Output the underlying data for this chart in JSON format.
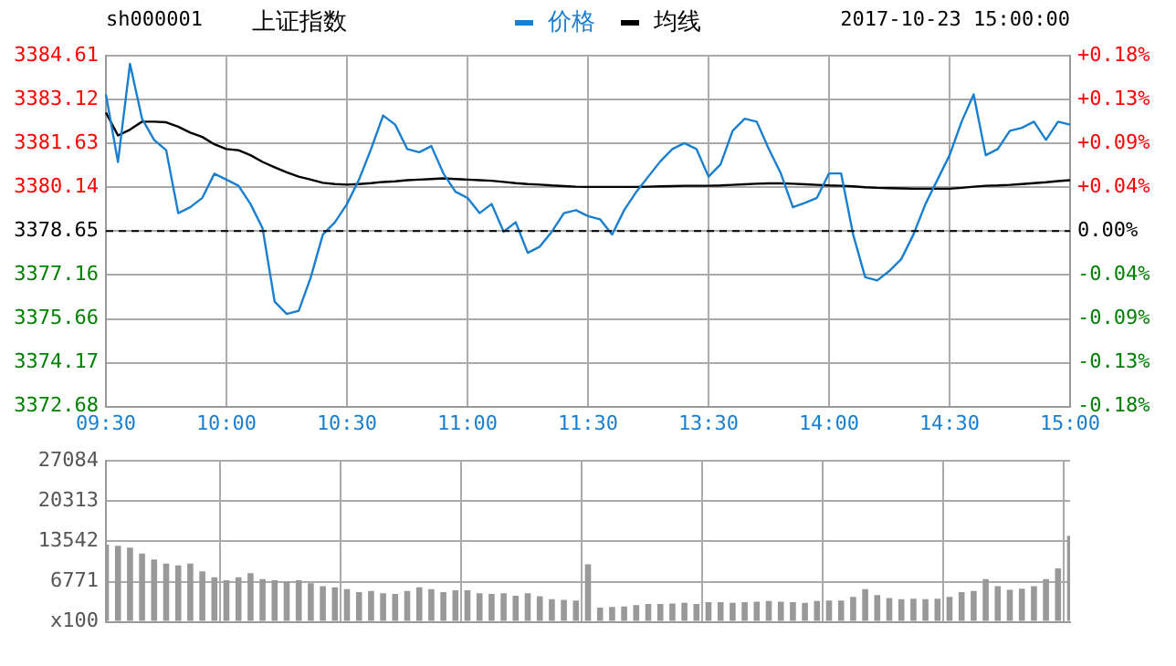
{
  "chart_data": [
    {
      "type": "line",
      "title": "上证指数",
      "subtitle": "sh000001",
      "annotations": [
        "2017-10-23 15:00:00"
      ],
      "categories": [
        "09:30",
        null,
        null,
        null,
        null,
        null,
        null,
        null,
        null,
        null,
        "10:00",
        null,
        null,
        null,
        null,
        null,
        null,
        null,
        null,
        null,
        "10:30",
        null,
        null,
        null,
        null,
        null,
        null,
        null,
        null,
        null,
        "11:00",
        null,
        null,
        null,
        null,
        null,
        null,
        null,
        null,
        null,
        "11:30",
        null,
        null,
        null,
        null,
        null,
        null,
        null,
        null,
        null,
        "13:30",
        null,
        null,
        null,
        null,
        null,
        null,
        null,
        null,
        null,
        "14:00",
        null,
        null,
        null,
        null,
        null,
        null,
        null,
        null,
        null,
        "14:30",
        null,
        null,
        null,
        null,
        null,
        null,
        null,
        null,
        null,
        "15:00"
      ],
      "series": [
        {
          "name": "价格",
          "color": "#1a7fcf",
          "values": [
            3383.3,
            3381.0,
            3384.34,
            3382.47,
            3381.75,
            3381.4,
            3379.26,
            3379.46,
            3379.78,
            3380.6,
            3380.4,
            3380.19,
            3379.57,
            3378.74,
            3376.25,
            3375.83,
            3375.94,
            3377.08,
            3378.53,
            3378.95,
            3379.57,
            3380.4,
            3381.44,
            3382.58,
            3382.27,
            3381.44,
            3381.33,
            3381.54,
            3380.61,
            3379.99,
            3379.78,
            3379.26,
            3379.57,
            3378.63,
            3378.95,
            3377.91,
            3378.12,
            3378.63,
            3379.26,
            3379.36,
            3379.16,
            3379.05,
            3378.53,
            3379.36,
            3379.98,
            3380.5,
            3381.02,
            3381.44,
            3381.64,
            3381.44,
            3380.5,
            3380.92,
            3382.06,
            3382.47,
            3382.37,
            3381.44,
            3380.61,
            3379.46,
            3379.61,
            3379.78,
            3380.61,
            3380.61,
            3378.53,
            3377.08,
            3376.97,
            3377.29,
            3377.7,
            3378.53,
            3379.57,
            3380.4,
            3381.23,
            3382.37,
            3383.3,
            3381.23,
            3381.44,
            3382.06,
            3382.16,
            3382.37,
            3381.75,
            3382.37,
            3382.27
          ]
        },
        {
          "name": "均线",
          "color": "#000000",
          "values": [
            3382.68,
            3381.9,
            3382.1,
            3382.37,
            3382.37,
            3382.35,
            3382.2,
            3382.0,
            3381.85,
            3381.6,
            3381.44,
            3381.4,
            3381.23,
            3381.0,
            3380.82,
            3380.65,
            3380.5,
            3380.4,
            3380.29,
            3380.25,
            3380.23,
            3380.25,
            3380.28,
            3380.32,
            3380.34,
            3380.38,
            3380.4,
            3380.42,
            3380.44,
            3380.42,
            3380.4,
            3380.38,
            3380.36,
            3380.32,
            3380.28,
            3380.25,
            3380.23,
            3380.2,
            3380.18,
            3380.16,
            3380.15,
            3380.15,
            3380.15,
            3380.15,
            3380.15,
            3380.16,
            3380.17,
            3380.18,
            3380.19,
            3380.19,
            3380.19,
            3380.2,
            3380.22,
            3380.24,
            3380.26,
            3380.27,
            3380.27,
            3380.26,
            3380.24,
            3380.22,
            3380.2,
            3380.19,
            3380.17,
            3380.14,
            3380.12,
            3380.11,
            3380.1,
            3380.09,
            3380.09,
            3380.09,
            3380.09,
            3380.12,
            3380.16,
            3380.19,
            3380.2,
            3380.22,
            3380.25,
            3380.28,
            3380.31,
            3380.35,
            3380.38
          ]
        }
      ],
      "ylim": [
        3372.68,
        3384.61
      ],
      "yticks": [
        3372.68,
        3374.17,
        3375.66,
        3377.16,
        3378.65,
        3380.14,
        3381.63,
        3383.12,
        3384.61
      ],
      "y2lim": [
        -0.1766,
        0.1766
      ],
      "y2ticks": [
        {
          "value": -0.1766,
          "label": "-0.18%"
        },
        {
          "value": -0.1324,
          "label": "-0.13%"
        },
        {
          "value": -0.0883,
          "label": "-0.09%"
        },
        {
          "value": -0.0441,
          "label": "-0.04%"
        },
        {
          "value": 0,
          "label": "0.00%"
        },
        {
          "value": 0.0441,
          "label": "+0.04%"
        },
        {
          "value": 0.0883,
          "label": "+0.09%"
        },
        {
          "value": 0.1324,
          "label": "+0.13%"
        },
        {
          "value": 0.1766,
          "label": "+0.18%"
        }
      ],
      "ref_lines": [
        {
          "axis": "y",
          "value": 3378.65,
          "color": "#000000",
          "line_style": "dashed"
        }
      ],
      "grid": true,
      "legend": "top",
      "marker": "none",
      "line_style": "solid"
    },
    {
      "type": "bar",
      "categories": [
        null,
        null,
        null,
        null,
        null,
        null,
        null,
        null,
        null,
        null,
        null,
        null,
        null,
        null,
        null,
        null,
        null,
        null,
        null,
        null,
        null,
        null,
        null,
        null,
        null,
        null,
        null,
        null,
        null,
        null,
        null,
        null,
        null,
        null,
        null,
        null,
        null,
        null,
        null,
        null,
        null,
        null,
        null,
        null,
        null,
        null,
        null,
        null,
        null,
        null,
        null,
        null,
        null,
        null,
        null,
        null,
        null,
        null,
        null,
        null,
        null,
        null,
        null,
        null,
        null,
        null,
        null,
        null,
        null,
        null,
        null,
        null,
        null,
        null,
        null,
        null,
        null,
        null,
        null,
        null,
        null
      ],
      "values": [
        13000,
        12800,
        12500,
        11500,
        10500,
        9800,
        9500,
        9800,
        8500,
        7500,
        7000,
        7500,
        8200,
        7200,
        7000,
        6800,
        7000,
        6500,
        6000,
        5800,
        5500,
        5000,
        5200,
        4800,
        4700,
        5200,
        5800,
        5500,
        5000,
        5300,
        5300,
        4800,
        4700,
        4800,
        4400,
        4800,
        4300,
        3800,
        3700,
        3600,
        9700,
        2400,
        2500,
        2600,
        2800,
        3000,
        3000,
        3100,
        3200,
        3000,
        3300,
        3300,
        3200,
        3300,
        3400,
        3500,
        3400,
        3300,
        3200,
        3500,
        3600,
        3600,
        4200,
        5500,
        4500,
        4000,
        3800,
        3900,
        3800,
        3900,
        4200,
        5000,
        5200,
        7200,
        6000,
        5400,
        5600,
        6000,
        7200,
        9000,
        14500
      ],
      "color": "#999999",
      "ylim": [
        0,
        27084
      ],
      "yticks": [
        {
          "value": 0,
          "label": "x100"
        },
        6771,
        13542,
        20313,
        27084
      ],
      "grid": true
    }
  ]
}
